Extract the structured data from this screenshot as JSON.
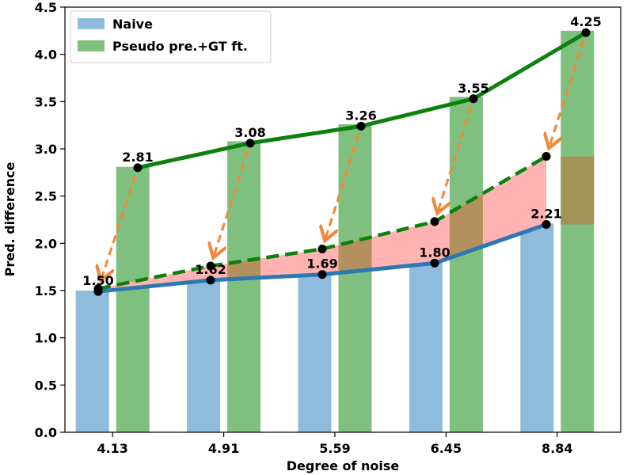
{
  "chart_data": {
    "type": "bar",
    "title": "",
    "xlabel": "Degree of noise",
    "ylabel": "Pred. difference",
    "categories": [
      "4.13",
      "4.91",
      "5.59",
      "6.45",
      "8.84"
    ],
    "ylim": [
      0,
      4.5
    ],
    "yticks": [
      "0.0",
      "0.5",
      "1.0",
      "1.5",
      "2.0",
      "2.5",
      "3.0",
      "3.5",
      "4.0",
      "4.5"
    ],
    "series": [
      {
        "name": "Naive",
        "values": [
          1.5,
          1.62,
          1.69,
          1.8,
          2.21
        ],
        "labels": [
          "1.50",
          "1.62",
          "1.69",
          "1.80",
          "2.21"
        ],
        "color": "#8fbbdc"
      },
      {
        "name": "Pseudo pre.+GT ft.",
        "values": [
          2.81,
          3.08,
          3.26,
          3.55,
          4.25
        ],
        "labels": [
          "2.81",
          "3.08",
          "3.26",
          "3.55",
          "4.25"
        ],
        "color": "#7fc07f"
      }
    ],
    "overlay": {
      "naive_line": [
        1.49,
        1.61,
        1.67,
        1.79,
        2.2
      ],
      "pseudo_line": [
        2.8,
        3.06,
        3.24,
        3.53,
        4.23
      ],
      "arrow_targets": [
        1.52,
        1.76,
        1.94,
        2.23,
        2.92
      ],
      "naive_line_color": "#2b78b5",
      "pseudo_line_color": "#0d800d",
      "arrow_color": "#f0883a",
      "fill_color": "#ffb3b3",
      "overlap_color": "#a78a50"
    },
    "legend_position": "upper-left"
  }
}
